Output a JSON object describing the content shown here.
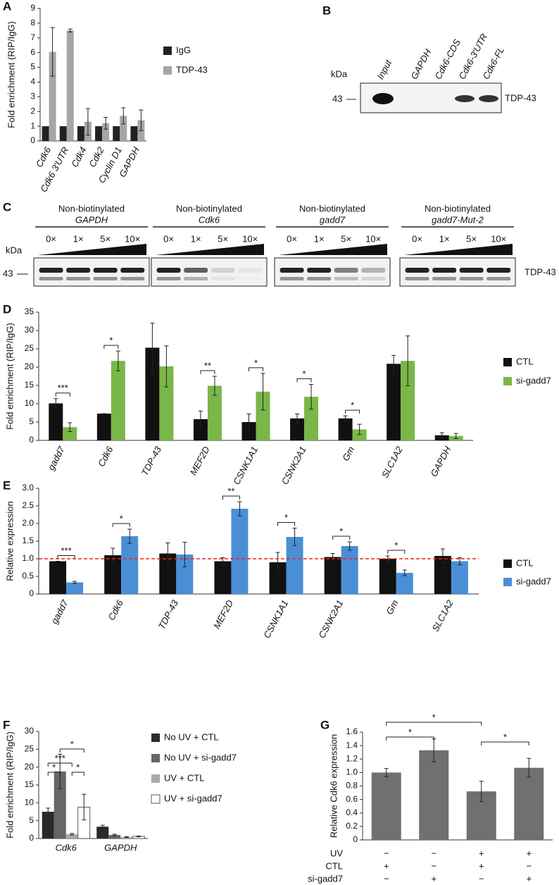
{
  "chart_data": [
    {
      "type": "bar",
      "panel_label": "A",
      "ylabel": "Fold enrichment (RIP/IgG)",
      "categories": [
        "Cdk6",
        "Cdk6 3′UTR",
        "Cdk4",
        "Cdk2",
        "Cyclin D1",
        "GAPDH"
      ],
      "series": [
        {
          "name": "IgG",
          "color": "#222222",
          "values": [
            1,
            1,
            1,
            1,
            1,
            1
          ]
        },
        {
          "name": "TDP-43",
          "color": "#a6a6a6",
          "values": [
            6.05,
            7.5,
            1.3,
            1.2,
            1.7,
            1.4
          ],
          "errors": [
            1.65,
            0.1,
            0.9,
            0.4,
            0.55,
            0.7
          ]
        }
      ],
      "ylim": [
        0,
        9
      ],
      "yticks": [
        0,
        1,
        2,
        3,
        4,
        5,
        6,
        7,
        8,
        9
      ]
    },
    {
      "type": "bar",
      "panel_label": "D",
      "ylabel": "Fold enrichment (RIP/IgG)",
      "categories": [
        "gadd7",
        "Cdk6",
        "TDP-43",
        "MEF2D",
        "CSNK1A1",
        "CSNK2A1",
        "Gm",
        "SLC1A2",
        "GAPDH"
      ],
      "series": [
        {
          "name": "CTL",
          "color": "#111111",
          "values": [
            10.1,
            7.3,
            25.3,
            5.8,
            5.0,
            6.0,
            6.0,
            20.9,
            1.4
          ],
          "errors": [
            1.3,
            0,
            6.7,
            2.2,
            2.2,
            1.2,
            0.7,
            2.3,
            0.7
          ]
        },
        {
          "name": "si-gadd7",
          "color": "#7ab648",
          "values": [
            3.6,
            21.7,
            20.2,
            14.9,
            13.3,
            11.9,
            3.0,
            21.7,
            1.2
          ],
          "errors": [
            1.2,
            2.7,
            5.6,
            2.6,
            5.0,
            3.4,
            1.4,
            6.8,
            0.7
          ]
        }
      ],
      "significance": [
        "***",
        "*",
        null,
        "**",
        "*",
        "*",
        "*",
        null,
        null
      ],
      "ylim": [
        0,
        35
      ],
      "yticks": [
        0,
        5,
        10,
        15,
        20,
        25,
        30,
        35
      ]
    },
    {
      "type": "bar",
      "panel_label": "E",
      "ylabel": "Relative expression",
      "categories": [
        "gadd7",
        "Cdk6",
        "TDP-43",
        "MEF2D",
        "CSNK1A1",
        "CSNK2A1",
        "Gm",
        "SLC1A2"
      ],
      "series": [
        {
          "name": "CTL",
          "color": "#111111",
          "values": [
            0.93,
            1.1,
            1.15,
            0.93,
            0.9,
            1.05,
            1.0,
            1.08
          ],
          "errors": [
            0,
            0.2,
            0.3,
            0.1,
            0.28,
            0.1,
            0.08,
            0.2
          ]
        },
        {
          "name": "si-gadd7",
          "color": "#4a8fd6",
          "values": [
            0.33,
            1.64,
            1.12,
            2.42,
            1.62,
            1.36,
            0.6,
            0.93
          ],
          "errors": [
            0.03,
            0.2,
            0.35,
            0.2,
            0.25,
            0.12,
            0.08,
            0.1
          ]
        }
      ],
      "significance": [
        "***",
        "*",
        null,
        "**",
        "*",
        "*",
        "*",
        null
      ],
      "reference_line": {
        "value": 1,
        "color": "#e8231f"
      },
      "ylim": [
        0,
        3
      ],
      "yticks": [
        0,
        0.5,
        {
          "value": 1,
          "label": "1.0"
        },
        1.5,
        {
          "value": 2,
          "label": "2.0"
        },
        2.5,
        {
          "value": 3,
          "label": "3.0"
        }
      ]
    },
    {
      "type": "bar",
      "panel_label": "F",
      "ylabel": "Fold enrichment (RIP/IgG)",
      "categories": [
        "Cdk6",
        "GAPDH"
      ],
      "series": [
        {
          "name": "No UV + CTL",
          "color": "#2a2a2a",
          "values": [
            7.5,
            3.3
          ],
          "errors": [
            1.0,
            0.4
          ]
        },
        {
          "name": "No UV + si-gadd7",
          "color": "#666666",
          "values": [
            18.8,
            1.0
          ],
          "errors": [
            4.8,
            0.2
          ]
        },
        {
          "name": "UV + CTL",
          "color": "#aaaaaa",
          "values": [
            1.2,
            0.4
          ],
          "errors": [
            0.2,
            0.1
          ]
        },
        {
          "name": "UV + si-gadd7",
          "color": "#ffffff",
          "values": [
            8.8,
            0.6
          ],
          "errors": [
            3.6,
            0.1
          ]
        }
      ],
      "annotations": [
        "*",
        "***",
        "*",
        "*"
      ],
      "ylim": [
        0,
        30
      ],
      "yticks": [
        0,
        5,
        10,
        15,
        20,
        25,
        30
      ]
    },
    {
      "type": "bar",
      "panel_label": "G",
      "ylabel": "Relative Cdk6 expression",
      "color": "#707070",
      "values": [
        1.0,
        1.33,
        0.72,
        1.07
      ],
      "errors": [
        0.06,
        0.17,
        0.15,
        0.14
      ],
      "annotations": [
        "*",
        "*",
        "*"
      ],
      "conditions": {
        "rows": [
          "UV",
          "CTL",
          "si-gadd7"
        ],
        "signs": [
          [
            "−",
            "−",
            "+",
            "+"
          ],
          [
            "+",
            "−",
            "+",
            "−"
          ],
          [
            "−",
            "+",
            "−",
            "+"
          ]
        ]
      },
      "ylim": [
        0,
        1.6
      ],
      "yticks": [
        0,
        0.2,
        0.4,
        0.6,
        0.8,
        {
          "value": 1,
          "label": "1.0"
        },
        1.2,
        1.4,
        1.6
      ]
    }
  ],
  "blots": [
    {
      "panel_label": "B",
      "kda_label": "kDa",
      "marker": 43,
      "protein": "TDP-43",
      "lanes": [
        "Input",
        "GAPDH",
        "Cdk6-CDS",
        "Cdk6-3′UTR",
        "Cdk6-FL"
      ]
    },
    {
      "panel_label": "C",
      "kda_label": "kDa",
      "marker": 43,
      "protein": "TDP-43",
      "groups": [
        {
          "title": "Non-biotinylated",
          "probe": "GAPDH",
          "doses": [
            "0×",
            "1×",
            "5×",
            "10×"
          ]
        },
        {
          "title": "Non-biotinylated",
          "probe": "Cdk6",
          "doses": [
            "0×",
            "1×",
            "5×",
            "10×"
          ]
        },
        {
          "title": "Non-biotinylated",
          "probe": "gadd7",
          "doses": [
            "0×",
            "1×",
            "5×",
            "10×"
          ]
        },
        {
          "title": "Non-biotinylated",
          "probe": "gadd7-Mut-2",
          "doses": [
            "0×",
            "1×",
            "5×",
            "10×"
          ]
        }
      ]
    }
  ]
}
